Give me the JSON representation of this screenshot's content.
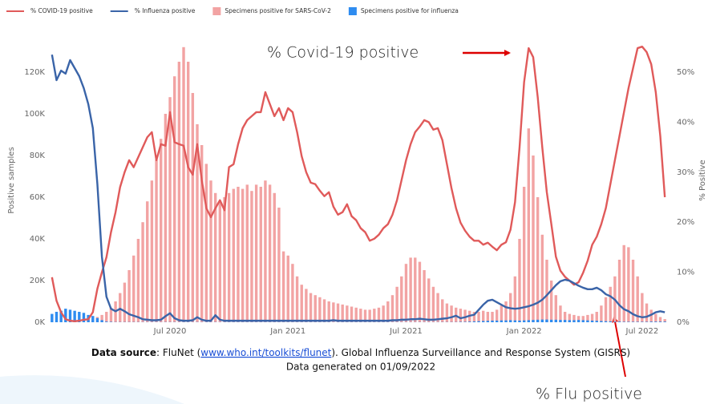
{
  "chart_data": {
    "type": "combo",
    "legend_position": "top-left",
    "y_label": "Positive samples",
    "y2_label": "% Positive",
    "grid": false,
    "annotations": [
      "% Covid-19 positive",
      "% Flu positive"
    ],
    "footnote": {
      "label": "Data source",
      "text_before": ": FluNet (",
      "link": "www.who.int/toolkits/flunet",
      "text_after": "). Global Influenza Surveillance and Response System (GISRS)",
      "generated": "Data generated on 01/09/2022"
    },
    "categories": [
      null,
      null,
      null,
      null,
      null,
      null,
      null,
      null,
      null,
      null,
      null,
      null,
      null,
      null,
      null,
      null,
      null,
      null,
      null,
      null,
      null,
      null,
      null,
      null,
      null,
      null,
      "Jul 2020",
      null,
      null,
      null,
      null,
      null,
      null,
      null,
      null,
      null,
      null,
      null,
      null,
      null,
      null,
      null,
      null,
      null,
      null,
      null,
      null,
      null,
      null,
      null,
      null,
      null,
      "Jan 2021",
      null,
      null,
      null,
      null,
      null,
      null,
      null,
      null,
      null,
      null,
      null,
      null,
      null,
      null,
      null,
      null,
      null,
      null,
      null,
      null,
      null,
      null,
      null,
      null,
      null,
      "Jul 2021",
      null,
      null,
      null,
      null,
      null,
      null,
      null,
      null,
      null,
      null,
      null,
      null,
      null,
      null,
      null,
      null,
      null,
      null,
      null,
      null,
      null,
      null,
      null,
      null,
      null,
      "Jan 2022",
      null,
      null,
      null,
      null,
      null,
      null,
      null,
      null,
      null,
      null,
      null,
      null,
      null,
      null,
      null,
      null,
      null,
      null,
      null,
      null,
      null,
      null,
      null,
      null,
      null,
      "Jul 2022",
      null,
      null,
      null,
      null,
      null
    ],
    "ylim": [
      0,
      135000
    ],
    "yticks": [
      {
        "value": 0,
        "label": "0K"
      },
      {
        "value": 20000,
        "label": "20K"
      },
      {
        "value": 40000,
        "label": "40K"
      },
      {
        "value": 60000,
        "label": "60K"
      },
      {
        "value": 80000,
        "label": "80K"
      },
      {
        "value": 100000,
        "label": "100K"
      },
      {
        "value": 120000,
        "label": "120K"
      }
    ],
    "y2lim": [
      0,
      56.25
    ],
    "y2ticks": [
      {
        "value": 0,
        "label": "0%"
      },
      {
        "value": 10,
        "label": "10%"
      },
      {
        "value": 20,
        "label": "20%"
      },
      {
        "value": 30,
        "label": "30%"
      },
      {
        "value": 40,
        "label": "40%"
      },
      {
        "value": 50,
        "label": "50%"
      }
    ],
    "series": [
      {
        "name": "% COVID-19 positive",
        "type": "line",
        "axis": "y2",
        "color": "#e05a5a",
        "values": [
          9,
          4.3,
          2,
          0.6,
          0.3,
          0.2,
          0.3,
          0.5,
          0.6,
          2,
          6.7,
          10,
          13,
          18,
          22,
          27,
          30,
          32.4,
          31,
          33,
          35,
          37,
          38,
          32.4,
          35.6,
          35.3,
          42,
          36,
          35.6,
          35.3,
          31,
          29.5,
          35.6,
          28.4,
          22.8,
          21,
          22.8,
          24.4,
          22.4,
          31,
          31.6,
          35.6,
          38.8,
          40.4,
          41.2,
          42,
          42,
          46,
          43.6,
          41.2,
          42.8,
          40.4,
          42.8,
          42,
          38,
          33.2,
          30,
          27.9,
          27.6,
          26.3,
          25.2,
          26,
          23.1,
          21.5,
          22,
          23.6,
          21.2,
          20.4,
          18.8,
          18,
          16.3,
          16.7,
          17.5,
          18.8,
          19.6,
          21.5,
          24.4,
          28.4,
          32.4,
          35.6,
          38,
          39.1,
          40.4,
          40,
          38.5,
          38.8,
          36.4,
          31.6,
          26.8,
          22.8,
          19.9,
          18.3,
          17.1,
          16.3,
          16.3,
          15.5,
          15.9,
          15.1,
          14.4,
          15.5,
          16,
          18.5,
          24,
          35,
          48,
          54.8,
          53,
          45,
          35,
          26,
          19.6,
          13.1,
          10.3,
          9.1,
          8.3,
          7.5,
          8,
          9.9,
          12.3,
          15.5,
          17.1,
          19.6,
          22.8,
          27.6,
          32.4,
          37.2,
          42,
          46.8,
          50.8,
          54.8,
          55.1,
          54,
          51.6,
          46,
          37.2,
          25
        ]
      },
      {
        "name": "% Influenza positive",
        "type": "line",
        "axis": "y2",
        "color": "#3a64a8",
        "values": [
          53.5,
          48.4,
          50.3,
          49.7,
          52.4,
          50.8,
          49.2,
          46.8,
          43.6,
          38.8,
          27.6,
          13.1,
          5.1,
          2.7,
          2.2,
          2.7,
          2.2,
          1.6,
          1.3,
          1,
          0.6,
          0.5,
          0.4,
          0.4,
          0.5,
          1.2,
          1.8,
          0.8,
          0.4,
          0.3,
          0.3,
          0.4,
          1,
          0.5,
          0.3,
          0.3,
          1.4,
          0.5,
          0.3,
          0.3,
          0.3,
          0.3,
          0.3,
          0.3,
          0.3,
          0.3,
          0.3,
          0.3,
          0.3,
          0.3,
          0.3,
          0.3,
          0.3,
          0.3,
          0.3,
          0.3,
          0.3,
          0.3,
          0.3,
          0.3,
          0.3,
          0.3,
          0.4,
          0.3,
          0.3,
          0.3,
          0.3,
          0.3,
          0.3,
          0.3,
          0.3,
          0.3,
          0.3,
          0.3,
          0.3,
          0.4,
          0.4,
          0.5,
          0.5,
          0.6,
          0.6,
          0.7,
          0.6,
          0.5,
          0.5,
          0.6,
          0.7,
          0.8,
          1,
          1.3,
          0.8,
          1,
          1.3,
          1.5,
          2.5,
          3.5,
          4.3,
          4.5,
          4,
          3.5,
          3,
          2.8,
          2.7,
          2.8,
          3,
          3.2,
          3.5,
          3.9,
          4.5,
          5.4,
          6.4,
          7.4,
          8.2,
          8.5,
          8.3,
          7.8,
          7.3,
          6.9,
          6.6,
          6.6,
          6.9,
          6.4,
          5.6,
          5.2,
          4.5,
          3.4,
          2.6,
          2.2,
          1.6,
          1.2,
          1,
          1.1,
          1.5,
          2,
          2.2,
          2
        ]
      },
      {
        "name": "Specimens positive for SARS-CoV-2",
        "type": "bar",
        "axis": "y",
        "color": "#f2a3a3",
        "values": [
          0,
          0,
          0,
          0,
          0,
          0,
          0,
          500,
          1000,
          1500,
          2500,
          3500,
          5000,
          7000,
          10000,
          14000,
          19000,
          25000,
          32000,
          40000,
          48000,
          58000,
          68000,
          78000,
          88000,
          100000,
          108000,
          118000,
          125000,
          132000,
          125000,
          110000,
          95000,
          85000,
          76000,
          68000,
          62000,
          58000,
          60000,
          62000,
          64000,
          65000,
          64000,
          66000,
          63000,
          66000,
          65000,
          68000,
          66000,
          62000,
          55000,
          34000,
          32000,
          28000,
          22000,
          18000,
          16000,
          14000,
          13000,
          12000,
          11000,
          10000,
          9500,
          9000,
          8500,
          8000,
          7500,
          7000,
          6500,
          6000,
          6000,
          6500,
          7000,
          8000,
          10000,
          13000,
          17000,
          22000,
          28000,
          31000,
          31000,
          29000,
          25000,
          21000,
          17000,
          14000,
          11000,
          9000,
          8000,
          7000,
          6500,
          6000,
          5500,
          5000,
          5000,
          5500,
          5000,
          5000,
          6000,
          8000,
          10000,
          14000,
          22000,
          40000,
          65000,
          93000,
          80000,
          60000,
          42000,
          30000,
          20000,
          13000,
          8000,
          5000,
          4000,
          3500,
          3000,
          3000,
          3500,
          4000,
          5000,
          8000,
          12000,
          17000,
          22000,
          30000,
          37000,
          36000,
          30000,
          22000,
          14000,
          9000,
          6000,
          4000,
          2500,
          1500
        ]
      },
      {
        "name": "Specimens positive for influenza",
        "type": "bar",
        "axis": "y",
        "color": "#2e8cf0",
        "values": [
          4000,
          5000,
          5500,
          6500,
          6000,
          5500,
          5000,
          4500,
          3500,
          3000,
          2000,
          1000,
          300,
          200,
          100,
          100,
          100,
          100,
          100,
          100,
          100,
          100,
          100,
          100,
          100,
          100,
          100,
          100,
          100,
          100,
          100,
          100,
          100,
          100,
          100,
          100,
          100,
          100,
          100,
          100,
          100,
          100,
          100,
          100,
          100,
          100,
          100,
          100,
          100,
          100,
          100,
          100,
          100,
          100,
          100,
          100,
          100,
          100,
          100,
          100,
          100,
          100,
          100,
          100,
          100,
          100,
          100,
          100,
          100,
          100,
          100,
          100,
          100,
          100,
          100,
          100,
          100,
          100,
          100,
          100,
          100,
          100,
          100,
          100,
          100,
          100,
          100,
          100,
          100,
          100,
          200,
          200,
          300,
          400,
          500,
          600,
          700,
          800,
          800,
          900,
          900,
          1000,
          900,
          800,
          900,
          1000,
          1100,
          1200,
          1300,
          1300,
          1200,
          1200,
          1100,
          1100,
          1000,
          1000,
          1100,
          1000,
          900,
          800,
          700,
          600,
          500,
          400,
          300,
          300,
          200,
          200,
          200,
          200,
          200,
          200,
          300,
          300,
          300,
          300
        ]
      }
    ]
  }
}
